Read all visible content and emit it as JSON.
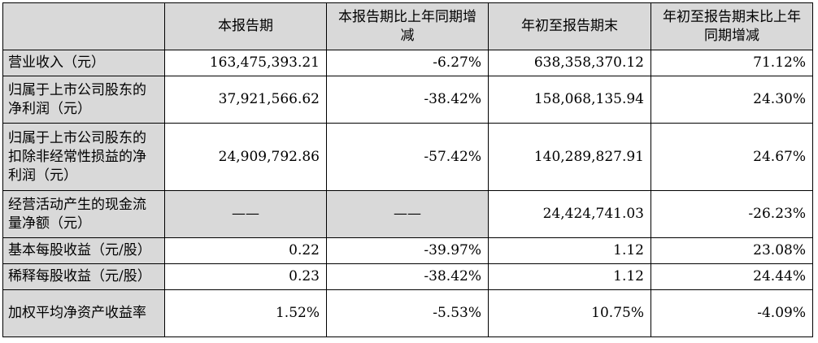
{
  "headers": [
    "",
    "本报告期",
    "本报告期比上年同期增减",
    "年初至报告期末",
    "年初至报告期末比上年同期增减"
  ],
  "rows": [
    {
      "label": "营业收入（元）",
      "values": [
        "163,475,393.21",
        "-6.27%",
        "638,358,370.12",
        "71.12%"
      ]
    },
    {
      "label": "归属于上市公司股东的净利润（元）",
      "values": [
        "37,921,566.62",
        "-38.42%",
        "158,068,135.94",
        "24.30%"
      ]
    },
    {
      "label": "归属于上市公司股东的扣除非经常性损益的净利润（元）",
      "values": [
        "24,909,792.86",
        "-57.42%",
        "140,289,827.91",
        "24.67%"
      ]
    },
    {
      "label": "经营活动产生的现金流量净额（元）",
      "values": [
        "——",
        "——",
        "24,424,741.03",
        "-26.23%"
      ]
    },
    {
      "label": "基本每股收益（元/股）",
      "values": [
        "0.22",
        "-39.97%",
        "1.12",
        "23.08%"
      ]
    },
    {
      "label": "稀释每股收益（元/股）",
      "values": [
        "0.23",
        "-38.42%",
        "1.12",
        "24.44%"
      ]
    },
    {
      "label": "加权平均净资产收益率",
      "values": [
        "1.52%",
        "-5.53%",
        "10.75%",
        "-4.09%"
      ]
    }
  ]
}
